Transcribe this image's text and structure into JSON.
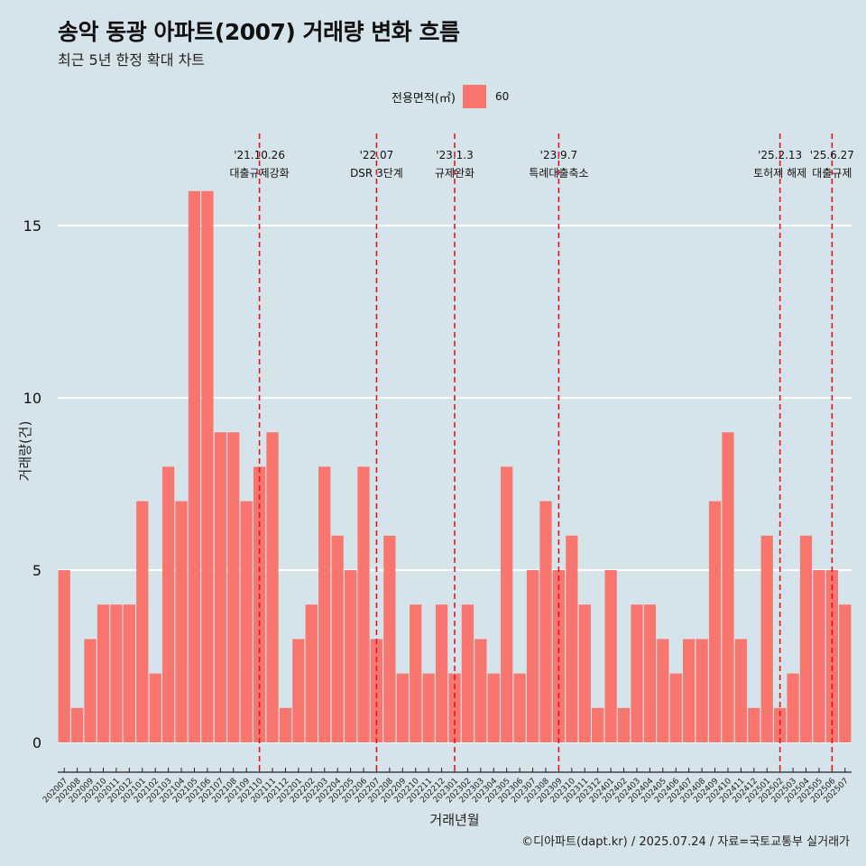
{
  "title": "송악 동광 아파트(2007) 거래량 변화 흐름",
  "subtitle": "최근 5년 한정 확대 차트",
  "legend": {
    "title": "전용면적(㎡)",
    "key": "60",
    "color": "#f8766d"
  },
  "caption": "©디아파트(dapt.kr) / 2025.07.24 / 자료=국토교통부 실거래가",
  "chart_data": {
    "type": "bar",
    "xlabel": "거래년월",
    "ylabel": "거래량(건)",
    "ylim": [
      0,
      16
    ],
    "yticks": [
      0,
      5,
      10,
      15
    ],
    "grid": true,
    "legend_position": "top",
    "bar_color": "#f8766d",
    "categories": [
      "202007",
      "202008",
      "202009",
      "202010",
      "202011",
      "202012",
      "202101",
      "202102",
      "202103",
      "202104",
      "202105",
      "202106",
      "202107",
      "202108",
      "202109",
      "202110",
      "202111",
      "202112",
      "202201",
      "202202",
      "202203",
      "202204",
      "202205",
      "202206",
      "202207",
      "202208",
      "202209",
      "202210",
      "202211",
      "202212",
      "202301",
      "202302",
      "202303",
      "202304",
      "202305",
      "202306",
      "202307",
      "202308",
      "202309",
      "202310",
      "202311",
      "202312",
      "202401",
      "202402",
      "202403",
      "202404",
      "202405",
      "202406",
      "202407",
      "202408",
      "202409",
      "202410",
      "202411",
      "202412",
      "202501",
      "202502",
      "202503",
      "202504",
      "202505",
      "202506",
      "202507"
    ],
    "series": [
      {
        "name": "60",
        "values": [
          5,
          1,
          3,
          4,
          4,
          4,
          7,
          2,
          8,
          7,
          16,
          16,
          9,
          9,
          7,
          8,
          9,
          1,
          3,
          4,
          8,
          6,
          5,
          8,
          3,
          6,
          2,
          4,
          2,
          4,
          2,
          4,
          3,
          2,
          8,
          2,
          5,
          7,
          5,
          6,
          4,
          1,
          5,
          1,
          4,
          4,
          3,
          2,
          3,
          3,
          7,
          9,
          3,
          1,
          6,
          1,
          2,
          6,
          5,
          5,
          4
        ]
      }
    ],
    "annotations": [
      {
        "index": 15.5,
        "date": "'21.10.26",
        "label": "대출규제강화"
      },
      {
        "index": 24.5,
        "date": "'22.07",
        "label": "DSR 3단계"
      },
      {
        "index": 30.5,
        "date": "'23.1.3",
        "label": "규제완화"
      },
      {
        "index": 38.5,
        "date": "'23.9.7",
        "label": "특례대출축소"
      },
      {
        "index": 55.5,
        "date": "'25.2.13",
        "label": "토허제 해제"
      },
      {
        "index": 59.5,
        "date": "'25.6.27",
        "label": "대출규제"
      }
    ]
  }
}
